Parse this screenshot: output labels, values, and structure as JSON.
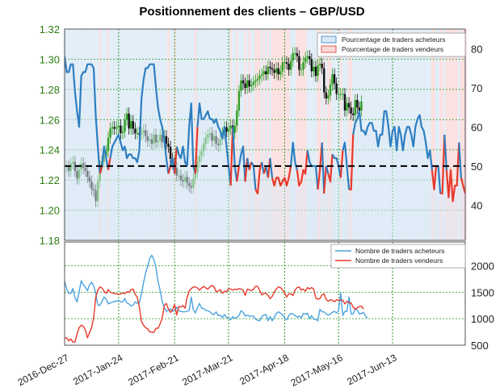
{
  "title": "Positionnement des clients – GBP/USD",
  "colors": {
    "buyers": "#2e7ec0",
    "buyers_lower": "#4aa3e0",
    "sellers": "#e8392b",
    "candle": "#111111",
    "candle_green": "#2e9e22",
    "grid": "#2a9a2a",
    "ref_line": "#000000",
    "buy_fill": "#dbe9f6",
    "sell_fill": "#fbdada"
  },
  "chart_data": [
    {
      "type": "line",
      "panel": "upper",
      "title": "Positionnement des clients – GBP/USD",
      "x_tick_labels": [
        "2016-Dec-27",
        "2017-Jan-24",
        "2017-Feb-21",
        "2017-Mar-21",
        "2017-Apr-18",
        "2017-May-16",
        "2017-Jun-13"
      ],
      "y_left": {
        "ticks": [
          "1.18",
          "1.20",
          "1.22",
          "1.24",
          "1.26",
          "1.28",
          "1.30",
          "1.32"
        ],
        "ylim": [
          1.18,
          1.32
        ]
      },
      "y_right": {
        "ticks": [
          "40",
          "50",
          "60",
          "70",
          "80"
        ],
        "ylim": [
          31,
          85
        ]
      },
      "reference_line": 50,
      "legend": [
        "Pourcentage de traders acheteurs",
        "Pourcentage de traders vendeurs"
      ],
      "legend_position": "top-right",
      "series": [
        {
          "name": "Pourcentage de traders acheteurs",
          "axis": "right",
          "values": [
            78,
            74,
            74,
            76,
            76,
            69,
            64,
            60,
            73,
            74,
            74,
            76,
            76,
            76,
            75,
            63,
            55,
            48,
            50,
            55,
            52,
            49,
            52,
            55,
            56,
            57,
            58,
            56,
            54,
            55,
            52,
            53,
            53,
            52,
            52,
            51,
            54,
            67,
            72,
            75,
            75,
            76,
            76,
            76,
            70,
            65,
            62,
            60,
            57,
            52,
            48,
            50,
            52,
            48,
            55,
            53,
            52,
            55,
            51,
            50,
            60,
            66,
            50,
            48,
            60,
            66,
            62,
            62,
            63,
            64,
            62,
            62,
            61,
            62,
            60,
            59,
            57,
            60,
            55,
            50,
            45,
            60,
            50,
            46,
            50,
            53,
            55,
            46,
            52,
            49,
            51,
            50,
            44,
            43,
            49,
            51,
            48,
            50,
            47,
            52,
            47,
            45,
            47,
            47,
            45,
            46,
            47,
            45,
            47,
            50,
            56,
            51,
            49,
            45,
            46,
            49,
            48,
            54,
            51,
            50,
            50,
            50,
            44,
            49,
            56,
            43,
            50,
            48,
            46,
            53,
            52,
            52,
            50,
            47,
            54,
            56,
            50,
            44,
            44,
            58,
            61,
            62,
            64,
            59,
            59,
            58,
            60,
            61,
            61,
            59,
            59,
            55,
            58,
            58,
            64,
            64,
            60,
            55,
            59,
            60,
            54,
            60,
            58,
            54,
            58,
            60,
            60,
            58,
            55,
            60,
            62,
            63,
            60,
            59,
            56,
            52,
            54,
            49,
            44,
            50,
            50,
            43,
            43,
            58,
            49,
            42,
            49,
            41,
            45,
            45,
            56,
            47,
            45,
            43
          ]
        },
        {
          "name": "Pourcentage de traders vendeurs",
          "axis": "right"
        },
        {
          "name": "GBP/USD",
          "axis": "left",
          "kind": "candlestick",
          "close": [
            1.229,
            1.229,
            1.226,
            1.231,
            1.232,
            1.226,
            1.221,
            1.227,
            1.231,
            1.228,
            1.226,
            1.222,
            1.219,
            1.214,
            1.213,
            1.206,
            1.219,
            1.229,
            1.232,
            1.236,
            1.239,
            1.248,
            1.254,
            1.255,
            1.254,
            1.255,
            1.256,
            1.251,
            1.252,
            1.26,
            1.264,
            1.254,
            1.259,
            1.254,
            1.251,
            1.251,
            1.25,
            1.251,
            1.253,
            1.249,
            1.246,
            1.247,
            1.244,
            1.25,
            1.245,
            1.246,
            1.25,
            1.245,
            1.249,
            1.244,
            1.242,
            1.234,
            1.231,
            1.228,
            1.223,
            1.223,
            1.22,
            1.219,
            1.222,
            1.218,
            1.216,
            1.215,
            1.221,
            1.225,
            1.232,
            1.236,
            1.239,
            1.244,
            1.248,
            1.25,
            1.251,
            1.246,
            1.249,
            1.244,
            1.243,
            1.247,
            1.251,
            1.255,
            1.252,
            1.254,
            1.256,
            1.251,
            1.256,
            1.266,
            1.279,
            1.286,
            1.284,
            1.281,
            1.286,
            1.282,
            1.283,
            1.285,
            1.286,
            1.287,
            1.289,
            1.29,
            1.292,
            1.29,
            1.295,
            1.294,
            1.293,
            1.291,
            1.294,
            1.29,
            1.292,
            1.298,
            1.298,
            1.297,
            1.293,
            1.299,
            1.304,
            1.304,
            1.302,
            1.293,
            1.293,
            1.298,
            1.301,
            1.302,
            1.3,
            1.292,
            1.295,
            1.289,
            1.296,
            1.297,
            1.294,
            1.278,
            1.274,
            1.276,
            1.283,
            1.29,
            1.284,
            1.277,
            1.277,
            1.277,
            1.277,
            1.266,
            1.271,
            1.268,
            1.264,
            1.263,
            1.273,
            1.268,
            1.266,
            1.272
          ]
        }
      ]
    },
    {
      "type": "line",
      "panel": "lower",
      "y_right": {
        "ticks": [
          "500",
          "1000",
          "1500",
          "2000"
        ],
        "ylim": [
          500,
          2450
        ]
      },
      "legend": [
        "Nombre de traders acheteurs",
        "Nombre de traders vendeurs"
      ],
      "legend_position": "top-right",
      "series": [
        {
          "name": "Nombre de traders acheteurs",
          "values": [
            1710,
            1560,
            1480,
            1480,
            1570,
            1400,
            1320,
            1510,
            1720,
            1640,
            1600,
            1530,
            1640,
            1690,
            1620,
            1480,
            1260,
            1250,
            1330,
            1410,
            1370,
            1280,
            1300,
            1310,
            1330,
            1330,
            1350,
            1320,
            1320,
            1380,
            1300,
            1280,
            1240,
            1260,
            1320,
            1290,
            1300,
            1470,
            1680,
            1860,
            1990,
            2140,
            2200,
            2120,
            1960,
            1710,
            1540,
            1330,
            1210,
            1140,
            1160,
            1190,
            1140,
            1160,
            1220,
            1150,
            1140,
            1130,
            1130,
            1140,
            1160,
            1410,
            1170,
            1110,
            1210,
            1290,
            1200,
            1190,
            1160,
            1150,
            1130,
            1090,
            1080,
            1130,
            1060,
            1070,
            1020,
            1080,
            1020,
            1020,
            980,
            1040,
            1010,
            1020,
            1060,
            1150,
            1120,
            1050,
            1070,
            1050,
            1050,
            1050,
            990,
            970,
            960,
            1040,
            1070,
            1080,
            960,
            1040,
            960,
            1030,
            1100,
            1130,
            1100,
            1080,
            1010,
            980,
            1060,
            1100,
            1090,
            1060,
            1030,
            1050,
            1020,
            1100,
            1090,
            1100,
            1000,
            1060,
            990,
            990,
            960,
            1180,
            1130,
            1130,
            1090,
            1070,
            1090,
            1120,
            1140,
            1110,
            1150,
            1490,
            1060,
            1140,
            1140,
            1410,
            1090,
            1090,
            1190,
            1160,
            1090,
            1100,
            1120,
            1050,
            1010
          ]
        },
        {
          "name": "Nombre de traders vendeurs",
          "values": [
            630,
            640,
            580,
            620,
            560,
            560,
            710,
            830,
            880,
            860,
            790,
            640,
            740,
            830,
            1020,
            1400,
            1540,
            1600,
            1580,
            1520,
            1480,
            1550,
            1500,
            1490,
            1480,
            1470,
            1460,
            1470,
            1490,
            1470,
            1510,
            1500,
            1550,
            1560,
            1460,
            1410,
            1220,
            950,
            880,
            830,
            810,
            750,
            750,
            740,
            820,
            820,
            900,
            1010,
            1250,
            1290,
            1180,
            1120,
            1170,
            1270,
            1070,
            1230,
            1220,
            1250,
            1200,
            1400,
            1520,
            1570,
            1600,
            1600,
            1580,
            1540,
            1580,
            1610,
            1580,
            1560,
            1600,
            1630,
            1600,
            1510,
            1520,
            1550,
            1480,
            1520,
            1510,
            1570,
            1560,
            1540,
            1560,
            1550,
            1570,
            1560,
            1540,
            1440,
            1560,
            1550,
            1530,
            1560,
            1610,
            1610,
            1530,
            1450,
            1480,
            1480,
            1440,
            1380,
            1420,
            1510,
            1560,
            1600,
            1590,
            1550,
            1480,
            1410,
            1470,
            1470,
            1440,
            1540,
            1590,
            1600,
            1540,
            1560,
            1520,
            1590,
            1560,
            1590,
            1560,
            1390,
            1370,
            1380,
            1450,
            1470,
            1360,
            1330,
            1360,
            1350,
            1320,
            1360,
            1350,
            1350,
            1350,
            1280,
            1330,
            1300,
            1300,
            1220,
            1180,
            1210,
            1230,
            1240,
            1180
          ]
        }
      ]
    }
  ]
}
